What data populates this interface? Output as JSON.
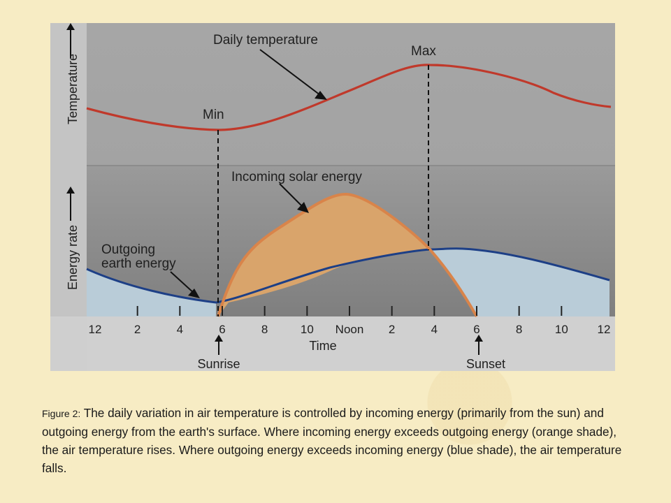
{
  "diagram": {
    "labels": {
      "daily_temperature": "Daily temperature",
      "max": "Max",
      "min": "Min",
      "incoming_solar_energy": "Incoming solar energy",
      "outgoing_line1": "Outgoing",
      "outgoing_line2": "earth energy",
      "temperature_axis": "Temperature",
      "energy_axis": "Energy rate",
      "time_axis": "Time",
      "sunrise": "Sunrise",
      "sunset": "Sunset"
    },
    "time_ticks": [
      "12",
      "2",
      "4",
      "6",
      "8",
      "10",
      "Noon",
      "2",
      "4",
      "6",
      "8",
      "10",
      "12"
    ],
    "colors": {
      "temperature_line": "#c0392b",
      "incoming_curve": "#d9844a",
      "incoming_fill": "#d9a46b",
      "outgoing_curve": "#1d3f86",
      "outgoing_fill": "#b9ccd8",
      "panel_top": "#a9a9a9",
      "panel_bottom": "#8a8a8a"
    }
  },
  "caption": {
    "label": "Figure 2:",
    "text": " The daily variation in air temperature is controlled by incoming energy (primarily from the sun) and outgoing energy from the earth's surface. Where incoming energy exceeds outgoing energy (orange shade), the air temperature rises. Where outgoing energy exceeds incoming energy (blue shade), the air temperature falls."
  }
}
